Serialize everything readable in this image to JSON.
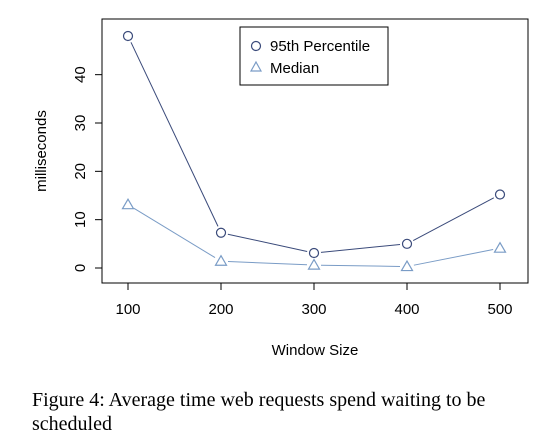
{
  "chart_data": {
    "type": "line",
    "x": [
      100,
      200,
      300,
      400,
      500
    ],
    "xticks": [
      "100",
      "200",
      "300",
      "400",
      "500"
    ],
    "yticks": [
      "0",
      "10",
      "20",
      "30",
      "40"
    ],
    "xlim": [
      100,
      500
    ],
    "ylim": [
      0,
      48
    ],
    "xlabel": "Window Size",
    "ylabel": "milliseconds",
    "legend_position": "top-center",
    "grid": false,
    "series": [
      {
        "name": "95th Percentile",
        "marker": "circle",
        "color": "#3a4a7a",
        "values": [
          48,
          7.3,
          3.1,
          5,
          15.2
        ]
      },
      {
        "name": "Median",
        "marker": "triangle",
        "color": "#7a9cc6",
        "values": [
          13.1,
          1.4,
          0.6,
          0.3,
          4.1
        ]
      }
    ]
  },
  "caption": "Figure 4: Average time web requests spend waiting to be scheduled"
}
